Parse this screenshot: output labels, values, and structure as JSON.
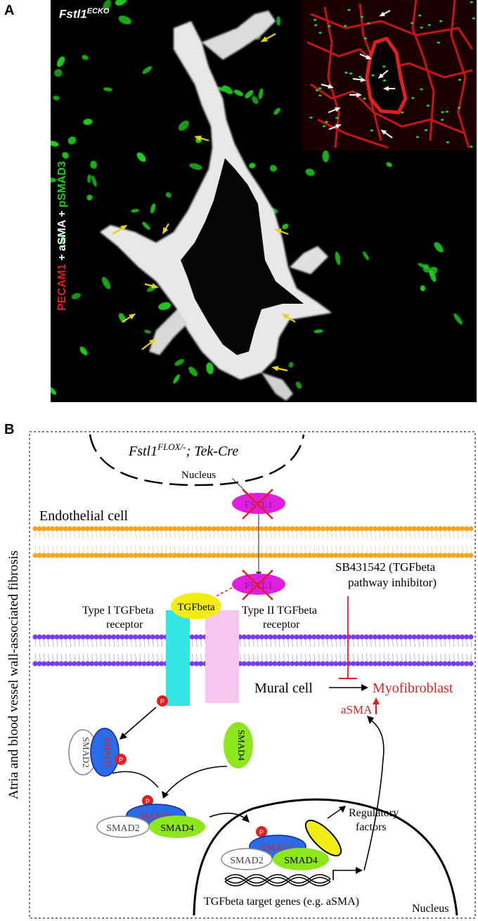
{
  "panel_a": {
    "letter": "A",
    "genotype_main": "Fstl1",
    "genotype_sup": "ECKO",
    "stain_red": "PECAM1",
    "stain_plus1": " + ",
    "stain_white": "aSMA",
    "stain_plus2": " + ",
    "stain_green": "pSMAD3",
    "colors": {
      "red": "#e02020",
      "white": "#ffffff",
      "green": "#22cc22",
      "arrow_yellow": "#e8d21a",
      "arrow_white": "#ffffff"
    }
  },
  "panel_b": {
    "letter": "B",
    "genotype_main": "Fstl1",
    "genotype_sup": "FLOX/-",
    "genotype_rest": "; Tek-Cre",
    "nucleus_top": "Nucleus",
    "nucleus_bottom": "Nucleus",
    "endothelial_cell": "Endothelial cell",
    "side_label": "Atria and blood vessel wall-associated fibrosis",
    "fstl1_top": "FSTL1",
    "fstl1_mid": "FSTL1",
    "inhibitor_line1": "SB431542 (TGFbeta",
    "inhibitor_line2": "pathway inhibitor)",
    "tgfbeta": "TGFbeta",
    "type1_line1": "Type I TGFbeta",
    "type1_line2": "receptor",
    "type2_line1": "Type II TGFbeta",
    "type2_line2": "receptor",
    "mural_cell": "Mural cell",
    "myofibroblast": "Myofibroblast",
    "asma": "aSMA",
    "smad2_a": "SMAD2",
    "smad3_a": "SMAD3",
    "smad4_a": "SMAD4",
    "smad3_b": "SMAD3",
    "smad2_b": "SMAD2",
    "smad4_b": "SMAD4",
    "smad3_c": "SMAD3",
    "smad2_c": "SMAD2",
    "smad4_c": "SMAD4",
    "phospho": "P",
    "regulatory_line1": "Regulatory",
    "regulatory_line2": "factors",
    "target_genes": "TGFbeta target genes (e.g. aSMA)",
    "colors": {
      "orange_membrane": "#f5a51e",
      "purple_membrane": "#7a3cf0",
      "fstl1_fill": "#e01ee0",
      "tgfbeta_fill": "#f2ee14",
      "type1_fill": "#33e6e6",
      "type2_fill": "#f7c6f0",
      "smad3_fill": "#2a6ce8",
      "smad4_fill": "#8ee61c",
      "red_text": "#e02020"
    }
  }
}
